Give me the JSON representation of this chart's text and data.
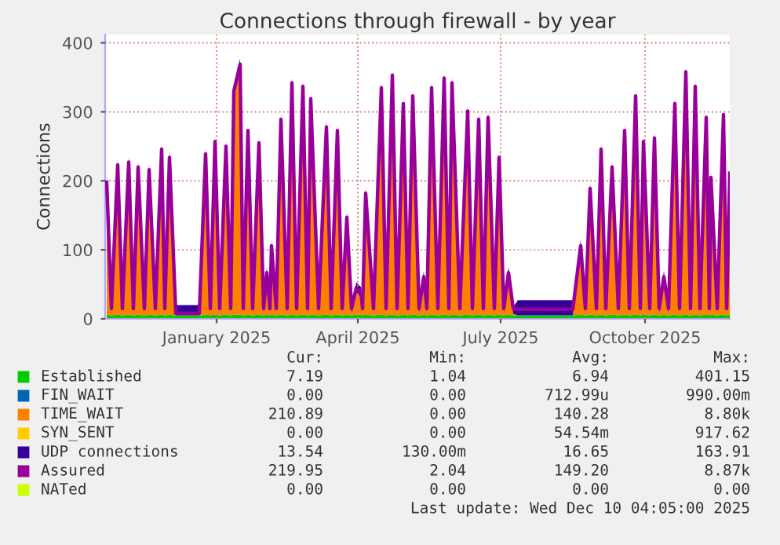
{
  "chart_data": {
    "type": "area",
    "title": "Connections through firewall - by year",
    "ylabel": "Connections",
    "x": [
      "2024-11-07",
      "2024-11-10",
      "2024-11-14",
      "2024-11-17",
      "2024-11-21",
      "2024-11-24",
      "2024-11-27",
      "2024-12-01",
      "2024-12-04",
      "2024-12-08",
      "2024-12-12",
      "2024-12-14",
      "2024-12-17",
      "2024-12-21",
      "2024-12-29",
      "2025-01-05",
      "2025-01-09",
      "2025-01-12",
      "2025-01-15",
      "2025-01-18",
      "2025-01-22",
      "2025-01-25",
      "2025-01-27",
      "2025-01-31",
      "2025-02-02",
      "2025-02-05",
      "2025-02-08",
      "2025-02-12",
      "2025-02-15",
      "2025-02-17",
      "2025-02-19",
      "2025-02-20",
      "2025-02-23",
      "2025-02-26",
      "2025-03-02",
      "2025-03-05",
      "2025-03-08",
      "2025-03-12",
      "2025-03-15",
      "2025-03-17",
      "2025-03-22",
      "2025-03-27",
      "2025-03-30",
      "2025-04-03",
      "2025-04-06",
      "2025-04-09",
      "2025-04-12",
      "2025-04-15",
      "2025-04-18",
      "2025-04-19",
      "2025-04-21",
      "2025-04-26",
      "2025-05-01",
      "2025-05-04",
      "2025-05-08",
      "2025-05-11",
      "2025-05-15",
      "2025-05-18",
      "2025-05-21",
      "2025-05-25",
      "2025-05-28",
      "2025-05-30",
      "2025-06-02",
      "2025-06-06",
      "2025-06-10",
      "2025-06-13",
      "2025-06-15",
      "2025-06-20",
      "2025-06-25",
      "2025-06-28",
      "2025-07-02",
      "2025-07-05",
      "2025-07-08",
      "2025-07-12",
      "2025-07-15",
      "2025-07-18",
      "2025-07-21",
      "2025-07-24",
      "2025-07-27",
      "2025-08-06",
      "2025-08-16",
      "2025-08-26",
      "2025-08-31",
      "2025-09-05",
      "2025-09-08",
      "2025-09-11",
      "2025-09-15",
      "2025-09-18",
      "2025-09-21",
      "2025-09-25",
      "2025-09-29",
      "2025-10-03",
      "2025-10-06",
      "2025-10-10",
      "2025-10-13",
      "2025-10-15",
      "2025-10-19",
      "2025-10-22",
      "2025-10-25",
      "2025-10-28",
      "2025-10-31",
      "2025-11-04",
      "2025-11-07",
      "2025-11-11",
      "2025-11-14",
      "2025-11-17",
      "2025-11-20",
      "2025-11-24",
      "2025-11-26",
      "2025-11-27",
      "2025-12-01",
      "2025-12-05",
      "2025-12-07",
      "2025-12-09"
    ],
    "stacked": true,
    "series": [
      {
        "name": "Established",
        "color": "#00cc00",
        "values": [
          6,
          5,
          6,
          5,
          6,
          5,
          6,
          5,
          6,
          5,
          6,
          5,
          6,
          5,
          5,
          5,
          6,
          5,
          6,
          5,
          6,
          5,
          6,
          6,
          5,
          6,
          5,
          6,
          5,
          6,
          5,
          6,
          5,
          6,
          5,
          6,
          5,
          6,
          5,
          6,
          5,
          6,
          5,
          6,
          5,
          6,
          5,
          6,
          6,
          5,
          6,
          5,
          6,
          5,
          6,
          5,
          6,
          5,
          6,
          5,
          6,
          5,
          6,
          5,
          6,
          5,
          6,
          5,
          6,
          5,
          6,
          5,
          6,
          5,
          6,
          5,
          6,
          5,
          5,
          5,
          5,
          5,
          5,
          6,
          5,
          6,
          5,
          6,
          5,
          6,
          5,
          6,
          5,
          6,
          5,
          6,
          5,
          6,
          5,
          6,
          5,
          6,
          5,
          6,
          5,
          6,
          5,
          6,
          5,
          6,
          5,
          6,
          5,
          6
        ]
      },
      {
        "name": "FIN_WAIT",
        "type": "line",
        "color": "#0066b3",
        "values": [
          null,
          null,
          null,
          null,
          null,
          null,
          null,
          null,
          null,
          null,
          null,
          null,
          null,
          null,
          null,
          null,
          null,
          null,
          null,
          null,
          null,
          null,
          null,
          null,
          null,
          null,
          null,
          null,
          null,
          null,
          null,
          null,
          null,
          null,
          null,
          null,
          null,
          null,
          null,
          null,
          null,
          null,
          null,
          null,
          null,
          null,
          null,
          null,
          null,
          null,
          null,
          null,
          null,
          null,
          null,
          null,
          null,
          null,
          null,
          null,
          null,
          null,
          null,
          null,
          null,
          null,
          null,
          null,
          null,
          null,
          null,
          null,
          null,
          null,
          null,
          null,
          null,
          null,
          null,
          null,
          null,
          null,
          null,
          null,
          null,
          null,
          null,
          null,
          null,
          null,
          null,
          null,
          null,
          null,
          null,
          null,
          null,
          null,
          null,
          null,
          null,
          null,
          null,
          null,
          null,
          null,
          null,
          null,
          null,
          null,
          null,
          null,
          null,
          null
        ]
      },
      {
        "name": "TIME_WAIT",
        "color": "#ff8000",
        "values": [
          185,
          2,
          210,
          2,
          214,
          2,
          207,
          2,
          203,
          2,
          233,
          2,
          221,
          0,
          0,
          0,
          226,
          2,
          244,
          2,
          237,
          2,
          317,
          356,
          2,
          260,
          2,
          242,
          2,
          54,
          2,
          93,
          2,
          276,
          2,
          329,
          2,
          324,
          2,
          306,
          2,
          265,
          2,
          260,
          2,
          134,
          2,
          32,
          25,
          2,
          169,
          2,
          322,
          2,
          340,
          2,
          299,
          2,
          310,
          2,
          48,
          2,
          322,
          2,
          336,
          2,
          329,
          2,
          288,
          2,
          276,
          2,
          279,
          2,
          221,
          2,
          54,
          2,
          0,
          0,
          0,
          0,
          0,
          93,
          2,
          176,
          2,
          233,
          2,
          207,
          2,
          260,
          2,
          310,
          2,
          244,
          2,
          249,
          2,
          48,
          2,
          299,
          2,
          345,
          2,
          324,
          2,
          279,
          2,
          192,
          2,
          283,
          2,
          198
        ]
      },
      {
        "name": "SYN_SENT",
        "type": "line",
        "color": "#ffcc00",
        "values": [
          null,
          null,
          null,
          null,
          null,
          null,
          null,
          null,
          null,
          null,
          null,
          null,
          null,
          null,
          null,
          null,
          null,
          null,
          null,
          null,
          null,
          null,
          null,
          null,
          null,
          null,
          null,
          null,
          null,
          null,
          null,
          null,
          null,
          null,
          null,
          null,
          null,
          null,
          null,
          null,
          null,
          null,
          null,
          null,
          null,
          null,
          null,
          null,
          null,
          null,
          null,
          null,
          null,
          null,
          null,
          null,
          null,
          null,
          null,
          null,
          null,
          null,
          null,
          null,
          null,
          null,
          null,
          null,
          null,
          null,
          null,
          null,
          null,
          null,
          null,
          null,
          null,
          null,
          null,
          null,
          null,
          null,
          null,
          null,
          null,
          null,
          null,
          null,
          null,
          null,
          null,
          null,
          null,
          null,
          null,
          null,
          null,
          null,
          null,
          null,
          null,
          null,
          null,
          null,
          null,
          null,
          null,
          null,
          null,
          null,
          null,
          null,
          null,
          null
        ]
      },
      {
        "name": "UDP connections",
        "color": "#330099",
        "values": [
          15,
          10,
          15,
          10,
          15,
          10,
          15,
          10,
          15,
          10,
          15,
          10,
          15,
          15,
          15,
          15,
          15,
          10,
          15,
          10,
          15,
          10,
          15,
          15,
          10,
          15,
          10,
          15,
          10,
          15,
          10,
          15,
          10,
          15,
          10,
          15,
          10,
          15,
          10,
          15,
          10,
          15,
          10,
          15,
          10,
          15,
          10,
          15,
          15,
          10,
          15,
          10,
          15,
          10,
          15,
          10,
          15,
          10,
          15,
          10,
          15,
          10,
          15,
          10,
          15,
          10,
          15,
          10,
          15,
          10,
          15,
          10,
          15,
          10,
          15,
          10,
          15,
          10,
          22,
          22,
          22,
          22,
          22,
          15,
          10,
          15,
          10,
          15,
          10,
          15,
          10,
          15,
          10,
          15,
          10,
          15,
          10,
          15,
          10,
          15,
          10,
          15,
          10,
          15,
          10,
          15,
          10,
          15,
          10,
          15,
          10,
          15,
          10,
          15
        ]
      },
      {
        "name": "Assured",
        "type": "line",
        "color": "#990099",
        "values": [
          198,
          15,
          223,
          15,
          227,
          15,
          220,
          15,
          216,
          15,
          246,
          15,
          234,
          8,
          8,
          8,
          239,
          15,
          257,
          15,
          250,
          15,
          330,
          369,
          15,
          273,
          15,
          255,
          15,
          67,
          15,
          106,
          15,
          289,
          15,
          342,
          15,
          337,
          15,
          319,
          15,
          278,
          15,
          273,
          15,
          147,
          15,
          45,
          38,
          15,
          182,
          15,
          335,
          15,
          353,
          15,
          312,
          15,
          323,
          15,
          61,
          15,
          335,
          15,
          349,
          15,
          342,
          15,
          301,
          15,
          289,
          15,
          292,
          15,
          234,
          15,
          67,
          15,
          14,
          14,
          14,
          14,
          14,
          106,
          15,
          189,
          15,
          246,
          15,
          220,
          15,
          273,
          15,
          323,
          15,
          257,
          15,
          262,
          15,
          61,
          15,
          312,
          15,
          358,
          15,
          337,
          15,
          292,
          15,
          205,
          15,
          296,
          15,
          211
        ]
      },
      {
        "name": "NATed",
        "type": "line",
        "color": "#ccff00",
        "values": [
          null,
          null,
          null,
          null,
          null,
          null,
          null,
          null,
          null,
          null,
          null,
          null,
          null,
          null,
          null,
          null,
          null,
          null,
          null,
          null,
          null,
          null,
          null,
          null,
          null,
          null,
          null,
          null,
          null,
          null,
          null,
          null,
          null,
          null,
          null,
          null,
          null,
          null,
          null,
          null,
          null,
          null,
          null,
          null,
          null,
          null,
          null,
          null,
          null,
          null,
          null,
          null,
          null,
          null,
          null,
          null,
          null,
          null,
          null,
          null,
          null,
          null,
          null,
          null,
          null,
          null,
          null,
          null,
          null,
          null,
          null,
          null,
          null,
          null,
          null,
          null,
          null,
          null,
          null,
          null,
          null,
          null,
          null,
          null,
          null,
          null,
          null,
          null,
          null,
          null,
          null,
          null,
          null,
          null,
          null,
          null,
          null,
          null,
          null,
          null,
          null,
          null,
          null,
          null,
          null,
          null,
          null,
          null,
          null,
          null,
          null,
          null,
          null,
          null
        ]
      }
    ],
    "xlim": [
      "2024-11-06",
      "2025-12-09"
    ],
    "xticks": [
      {
        "value": "2025-01-16",
        "label": "January 2025"
      },
      {
        "value": "2025-04-16",
        "label": "April 2025"
      },
      {
        "value": "2025-07-16",
        "label": "July 2025"
      },
      {
        "value": "2025-10-16",
        "label": "October 2025"
      }
    ],
    "ylim": [
      0,
      412
    ],
    "yticks": [
      0,
      100,
      200,
      300,
      400
    ],
    "grid": true,
    "legend": "bottom",
    "annotations": [
      "Cur:",
      "Min:",
      "Avg:",
      "Max:",
      "7.19",
      "1.04",
      "6.94",
      "401.15",
      "0.00",
      "0.00",
      "712.99u",
      "990.00m",
      "210.89",
      "0.00",
      "140.28",
      "8.80k",
      "0.00",
      "0.00",
      "54.54m",
      "917.62",
      "13.54",
      "130.00m",
      "16.65",
      "163.91",
      "219.95",
      "2.04",
      "149.20",
      "8.87k",
      "0.00",
      "0.00",
      "0.00",
      "0.00",
      "Last update: Wed Dec 10 04:05:00 2025"
    ]
  }
}
